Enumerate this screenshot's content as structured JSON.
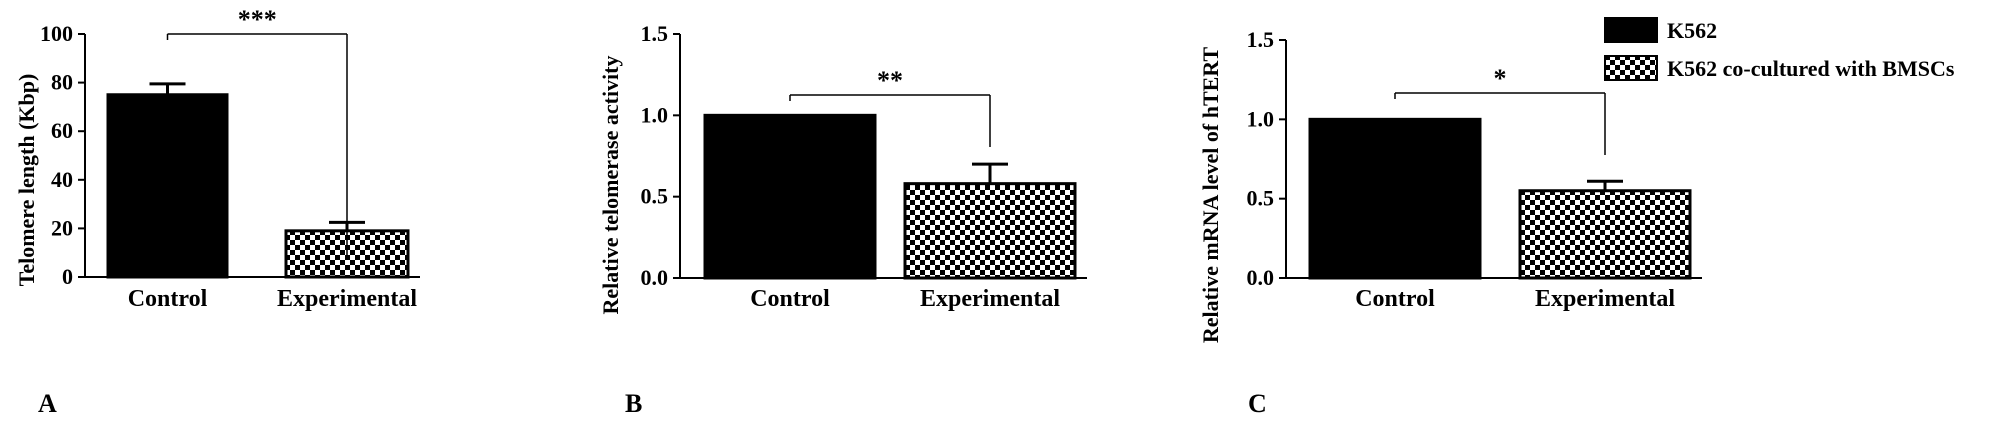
{
  "colors": {
    "bar_control": "#000000",
    "bar_experimental_pattern": "checkerboard-black-white",
    "axis": "#000000"
  },
  "legend": {
    "items": [
      {
        "label": "K562",
        "swatch": "solid-black"
      },
      {
        "label": "K562 co-cultured with BMSCs",
        "swatch": "checkerboard"
      }
    ]
  },
  "chart_data": [
    {
      "type": "bar",
      "panel": "A",
      "categories": [
        "Control",
        "Experimental"
      ],
      "values": [
        75,
        19
      ],
      "errors": [
        4.5,
        3.5
      ],
      "ylabel": "Telomere length (Kbp)",
      "xlabel": "",
      "ylim": [
        0,
        100
      ],
      "yticks": [
        "0",
        "20",
        "40",
        "60",
        "80",
        "100"
      ],
      "significance": "***",
      "grid": false
    },
    {
      "type": "bar",
      "panel": "B",
      "categories": [
        "Control",
        "Experimental"
      ],
      "values": [
        1.0,
        0.58
      ],
      "errors": [
        0,
        0.12
      ],
      "ylabel": "Relative telomerase activity",
      "xlabel": "",
      "ylim": [
        0,
        1.5
      ],
      "yticks": [
        "0.0",
        "0.5",
        "1.0",
        "1.5"
      ],
      "significance": "**",
      "grid": false
    },
    {
      "type": "bar",
      "panel": "C",
      "categories": [
        "Control",
        "Experimental"
      ],
      "values": [
        1.0,
        0.55
      ],
      "errors": [
        0,
        0.06
      ],
      "ylabel": "Relative mRNA level of hTERT",
      "xlabel": "",
      "ylim": [
        0,
        1.5
      ],
      "yticks": [
        "0.0",
        "0.5",
        "1.0",
        "1.5"
      ],
      "significance": "*",
      "grid": false
    }
  ]
}
